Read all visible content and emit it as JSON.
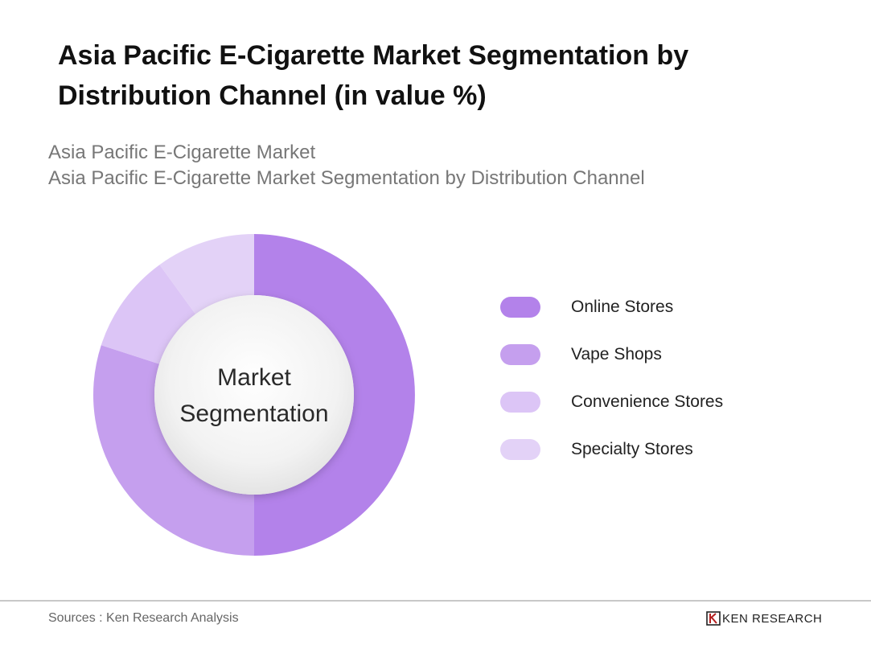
{
  "title": "Asia Pacific E-Cigarette Market Segmentation by Distribution Channel (in value %)",
  "subtitle_lines": [
    "Asia Pacific E-Cigarette Market",
    "Asia Pacific E-Cigarette Market Segmentation by Distribution Channel"
  ],
  "center_label": [
    "Market",
    "Segmentation"
  ],
  "footer": {
    "sources": "Sources : Ken Research Analysis",
    "brand_text": "KEN RESEARCH",
    "brand_icon": "ken-research-logo-icon"
  },
  "chart_data": {
    "type": "pie",
    "variant": "donut",
    "categories": [
      "Online Stores",
      "Vape Shops",
      "Convenience Stores",
      "Specialty Stores"
    ],
    "values": [
      50,
      30,
      10,
      10
    ],
    "unit": "%",
    "colors": [
      "#b382ea",
      "#c59fee",
      "#dcc5f6",
      "#e3d2f7"
    ],
    "legend_position": "right"
  }
}
